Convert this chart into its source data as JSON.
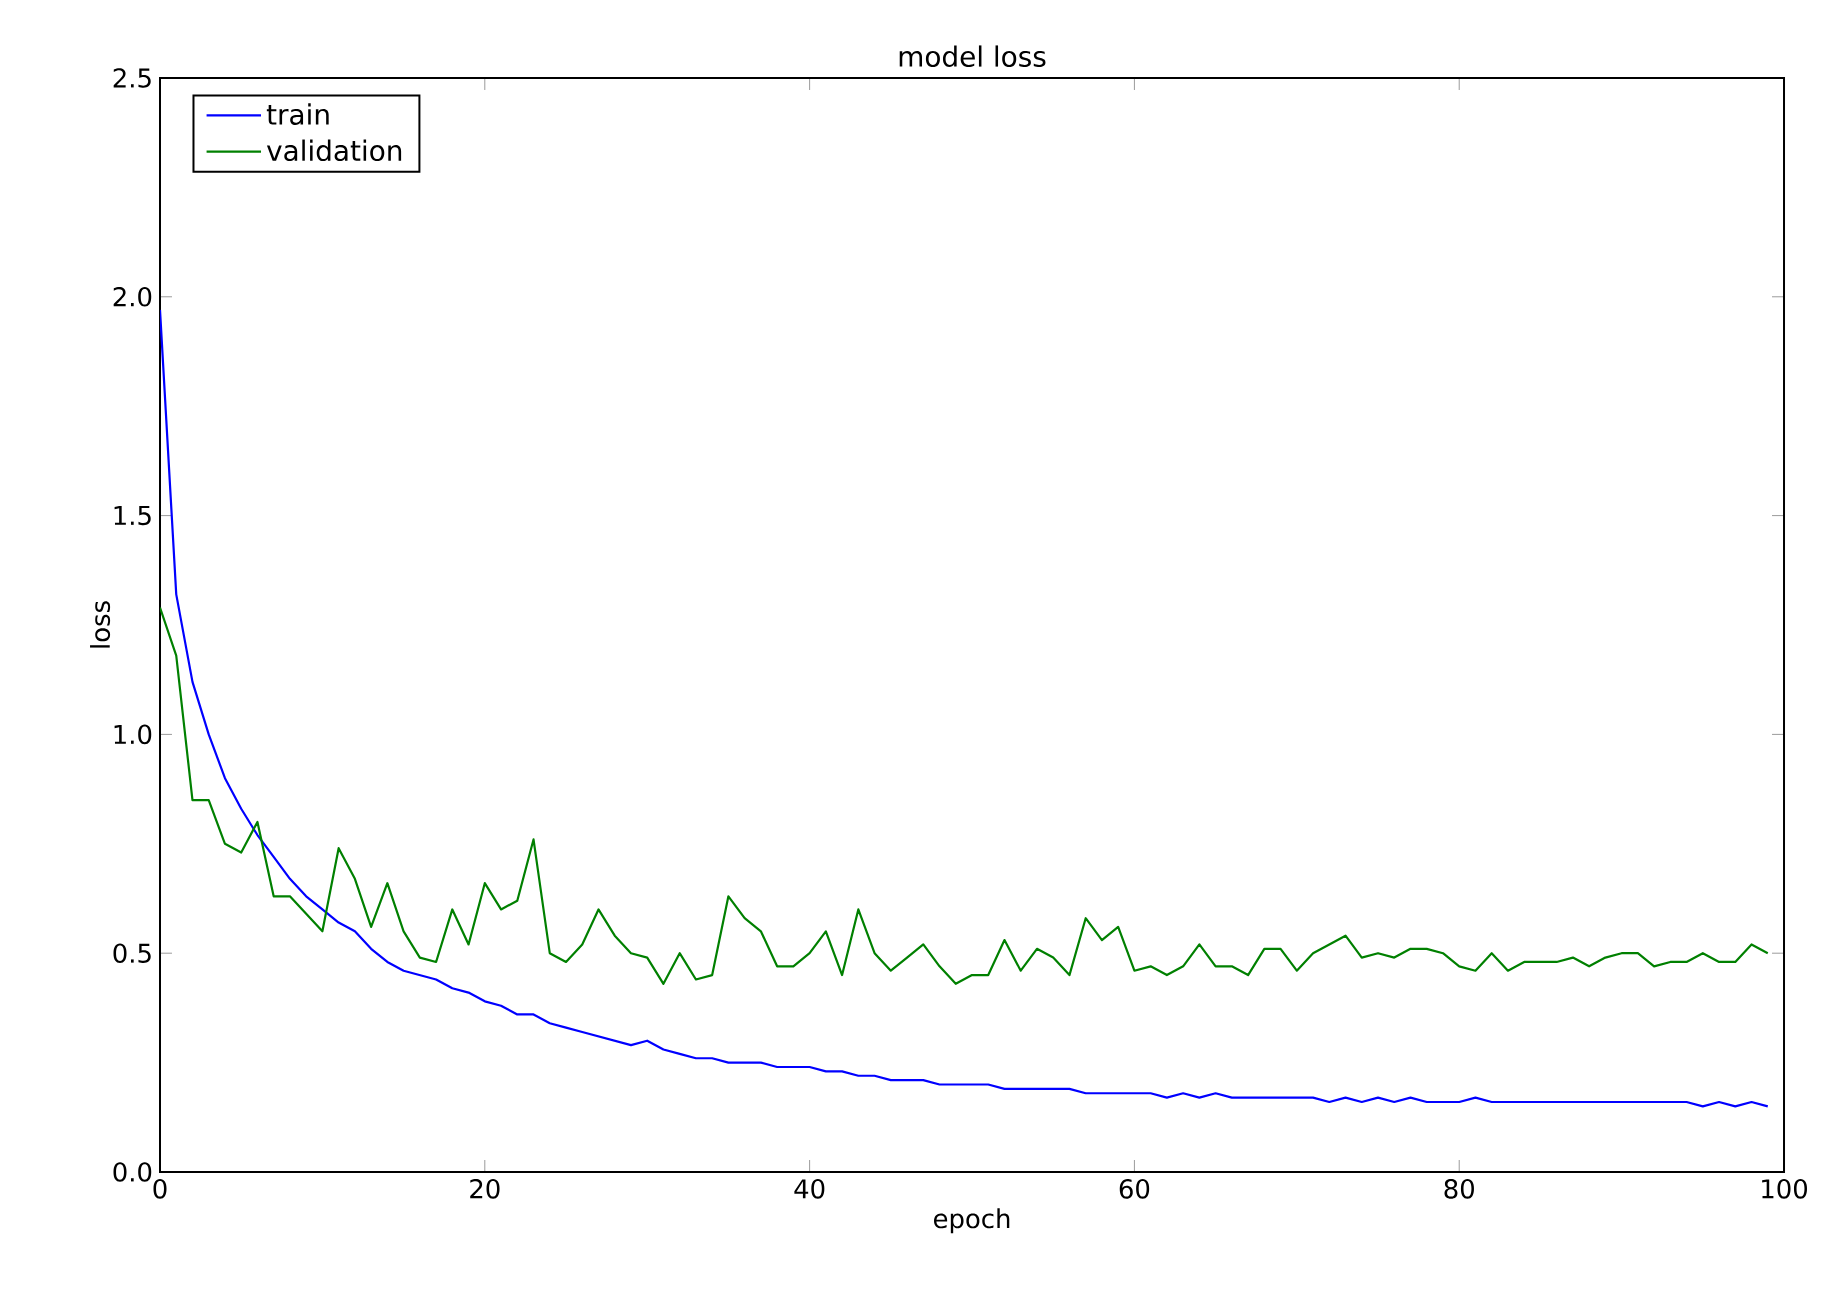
{
  "chart_data": {
    "type": "line",
    "title": "model loss",
    "xlabel": "epoch",
    "ylabel": "loss",
    "x": [
      0,
      1,
      2,
      3,
      4,
      5,
      6,
      7,
      8,
      9,
      10,
      11,
      12,
      13,
      14,
      15,
      16,
      17,
      18,
      19,
      20,
      21,
      22,
      23,
      24,
      25,
      26,
      27,
      28,
      29,
      30,
      31,
      32,
      33,
      34,
      35,
      36,
      37,
      38,
      39,
      40,
      41,
      42,
      43,
      44,
      45,
      46,
      47,
      48,
      49,
      50,
      51,
      52,
      53,
      54,
      55,
      56,
      57,
      58,
      59,
      60,
      61,
      62,
      63,
      64,
      65,
      66,
      67,
      68,
      69,
      70,
      71,
      72,
      73,
      74,
      75,
      76,
      77,
      78,
      79,
      80,
      81,
      82,
      83,
      84,
      85,
      86,
      87,
      88,
      89,
      90,
      91,
      92,
      93,
      94,
      95,
      96,
      97,
      98,
      99
    ],
    "series": [
      {
        "name": "train",
        "color": "#0000ff",
        "values": [
          1.97,
          1.32,
          1.12,
          1.0,
          0.9,
          0.83,
          0.77,
          0.72,
          0.67,
          0.63,
          0.6,
          0.57,
          0.55,
          0.51,
          0.48,
          0.46,
          0.45,
          0.44,
          0.42,
          0.41,
          0.39,
          0.38,
          0.36,
          0.36,
          0.34,
          0.33,
          0.32,
          0.31,
          0.3,
          0.29,
          0.3,
          0.28,
          0.27,
          0.26,
          0.26,
          0.25,
          0.25,
          0.25,
          0.24,
          0.24,
          0.24,
          0.23,
          0.23,
          0.22,
          0.22,
          0.21,
          0.21,
          0.21,
          0.2,
          0.2,
          0.2,
          0.2,
          0.19,
          0.19,
          0.19,
          0.19,
          0.19,
          0.18,
          0.18,
          0.18,
          0.18,
          0.18,
          0.17,
          0.18,
          0.17,
          0.18,
          0.17,
          0.17,
          0.17,
          0.17,
          0.17,
          0.17,
          0.16,
          0.17,
          0.16,
          0.17,
          0.16,
          0.17,
          0.16,
          0.16,
          0.16,
          0.17,
          0.16,
          0.16,
          0.16,
          0.16,
          0.16,
          0.16,
          0.16,
          0.16,
          0.16,
          0.16,
          0.16,
          0.16,
          0.16,
          0.15,
          0.16,
          0.15,
          0.16,
          0.15
        ]
      },
      {
        "name": "validation",
        "color": "#008000",
        "values": [
          1.29,
          1.18,
          0.85,
          0.85,
          0.75,
          0.73,
          0.8,
          0.63,
          0.63,
          0.59,
          0.55,
          0.74,
          0.67,
          0.56,
          0.66,
          0.55,
          0.49,
          0.48,
          0.6,
          0.52,
          0.66,
          0.6,
          0.62,
          0.76,
          0.5,
          0.48,
          0.52,
          0.6,
          0.54,
          0.5,
          0.49,
          0.43,
          0.5,
          0.44,
          0.45,
          0.63,
          0.58,
          0.55,
          0.47,
          0.47,
          0.5,
          0.55,
          0.45,
          0.6,
          0.5,
          0.46,
          0.49,
          0.52,
          0.47,
          0.43,
          0.45,
          0.45,
          0.53,
          0.46,
          0.51,
          0.49,
          0.45,
          0.58,
          0.53,
          0.56,
          0.46,
          0.47,
          0.45,
          0.47,
          0.52,
          0.47,
          0.47,
          0.45,
          0.51,
          0.51,
          0.46,
          0.5,
          0.52,
          0.54,
          0.49,
          0.5,
          0.49,
          0.51,
          0.51,
          0.5,
          0.47,
          0.46,
          0.5,
          0.46,
          0.48,
          0.48,
          0.48,
          0.49,
          0.47,
          0.49,
          0.5,
          0.5,
          0.47,
          0.48,
          0.48,
          0.5,
          0.48,
          0.48,
          0.52,
          0.5
        ]
      }
    ],
    "xlim": [
      0,
      100
    ],
    "ylim": [
      0,
      2.5
    ],
    "xticks": [
      0,
      20,
      40,
      60,
      80,
      100
    ],
    "yticks": [
      {
        "value": 0,
        "label": "0.0"
      },
      0.5,
      {
        "value": 1,
        "label": "1.0"
      },
      1.5,
      {
        "value": 2,
        "label": "2.0"
      },
      2.5
    ],
    "legend": "top left",
    "grid": false,
    "line_style": "solid",
    "marker": "none"
  }
}
